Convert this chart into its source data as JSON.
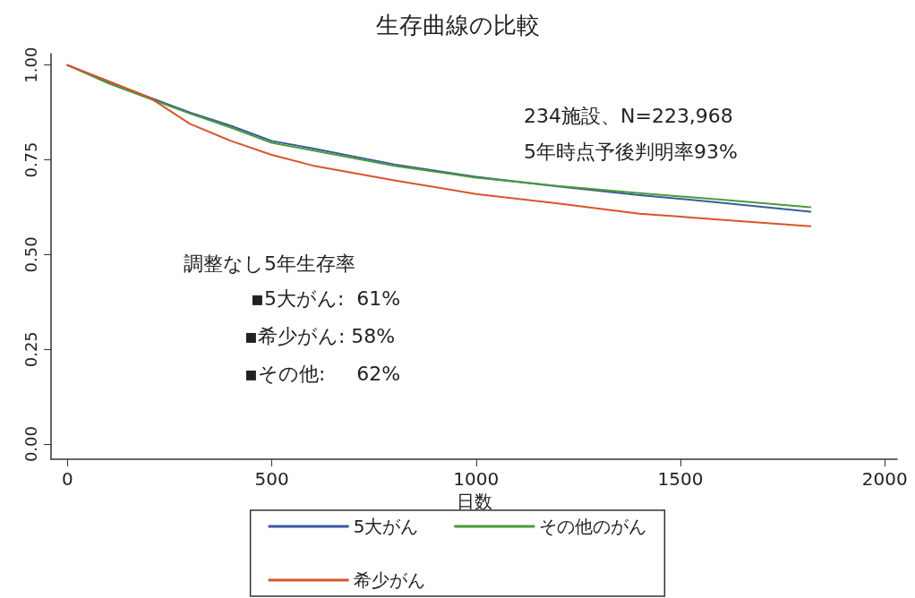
{
  "chart_data": {
    "type": "line",
    "title": "生存曲線の比較",
    "xlabel": "日数",
    "x": [
      0,
      100,
      200,
      300,
      400,
      500,
      600,
      800,
      1000,
      1200,
      1400,
      1600,
      1818
    ],
    "series": [
      {
        "name": "5大がん",
        "color": "#3a5a9a",
        "values": [
          1,
          0.955,
          0.915,
          0.875,
          0.84,
          0.8,
          0.78,
          0.738,
          0.705,
          0.68,
          0.657,
          0.637,
          0.613
        ]
      },
      {
        "name": "その他のがん",
        "color": "#4a9a3a",
        "values": [
          1,
          0.952,
          0.912,
          0.872,
          0.835,
          0.795,
          0.775,
          0.734,
          0.703,
          0.681,
          0.662,
          0.645,
          0.625
        ]
      },
      {
        "name": "希少がん",
        "color": "#d9542b",
        "values": [
          1,
          0.958,
          0.915,
          0.845,
          0.8,
          0.763,
          0.735,
          0.696,
          0.66,
          0.635,
          0.608,
          0.592,
          0.575
        ]
      }
    ],
    "xlim": [
      -40,
      2030
    ],
    "xticks": [
      0,
      500,
      1000,
      1500,
      2000
    ],
    "ylim": [
      -0.04,
      1.03
    ],
    "yticks": [
      {
        "value": 0,
        "label": "0.00"
      },
      {
        "value": 0.25,
        "label": "0.25"
      },
      {
        "value": 0.5,
        "label": "0.50"
      },
      {
        "value": 0.75,
        "label": "0.75"
      },
      {
        "value": 1,
        "label": "1.00"
      }
    ],
    "annotations": [
      "234施設、N=223,968",
      "5年時点予後判明率93%",
      "調整なし5年生存率",
      "▪5大がん:  61%",
      "▪希少がん: 58%",
      "▪その他:     62%"
    ],
    "grid": false,
    "legend": "bottom",
    "marker": "none",
    "line_style": "solid"
  }
}
